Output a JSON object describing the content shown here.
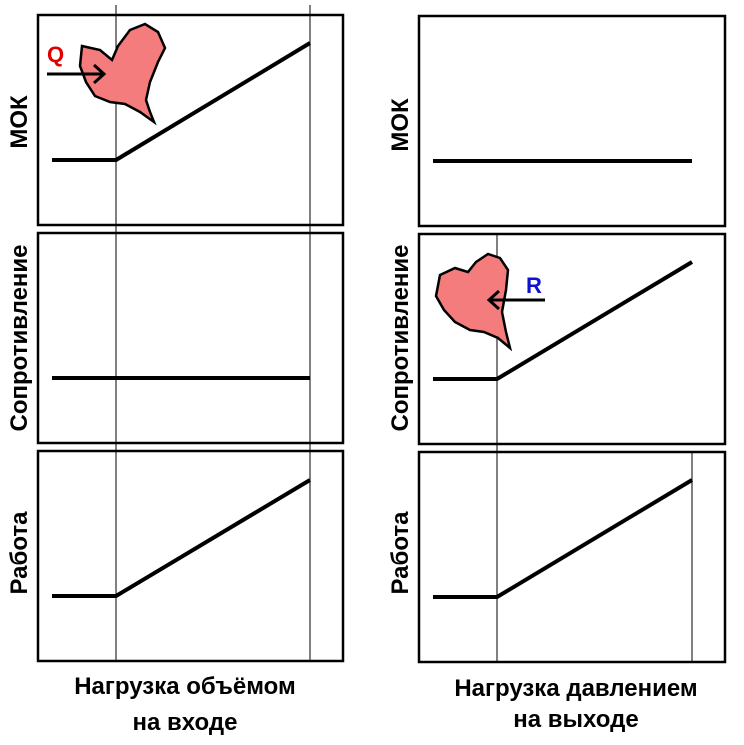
{
  "left": {
    "labels": {
      "mok": "МОК",
      "resistance": "Сопротивление",
      "work": "Работа"
    },
    "xlabel_line1": "Нагрузка объёмом",
    "xlabel_line2": "на входе",
    "marker": "Q",
    "marker_color": "#e00000"
  },
  "right": {
    "labels": {
      "mok": "МОК",
      "resistance": "Сопротивление",
      "work": "Работа"
    },
    "xlabel_line1": "Нагрузка давлением",
    "xlabel_line2": "на выходе",
    "marker": "R",
    "marker_color": "#1010d0"
  },
  "heart_color": "#f47c7c"
}
